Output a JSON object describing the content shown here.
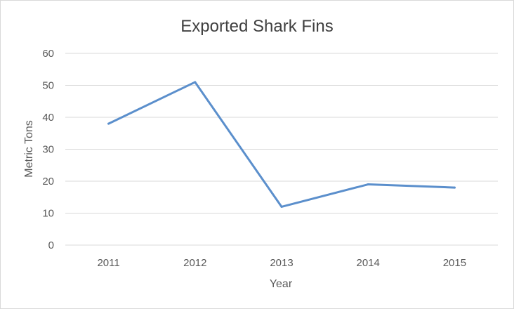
{
  "chart_data": {
    "type": "line",
    "title": "Exported Shark Fins",
    "xlabel": "Year",
    "ylabel": "Metric Tons",
    "categories": [
      "2011",
      "2012",
      "2013",
      "2014",
      "2015"
    ],
    "series": [
      {
        "values": [
          38,
          51,
          12,
          19,
          18
        ]
      }
    ],
    "ylim": [
      0,
      60
    ],
    "yticks": [
      0,
      10,
      20,
      30,
      40,
      50,
      60
    ],
    "grid": true,
    "legend": "none",
    "colors": {
      "line": "#5b8fcc",
      "grid": "#d9d9d9",
      "text": "#595959",
      "title": "#404040"
    }
  }
}
